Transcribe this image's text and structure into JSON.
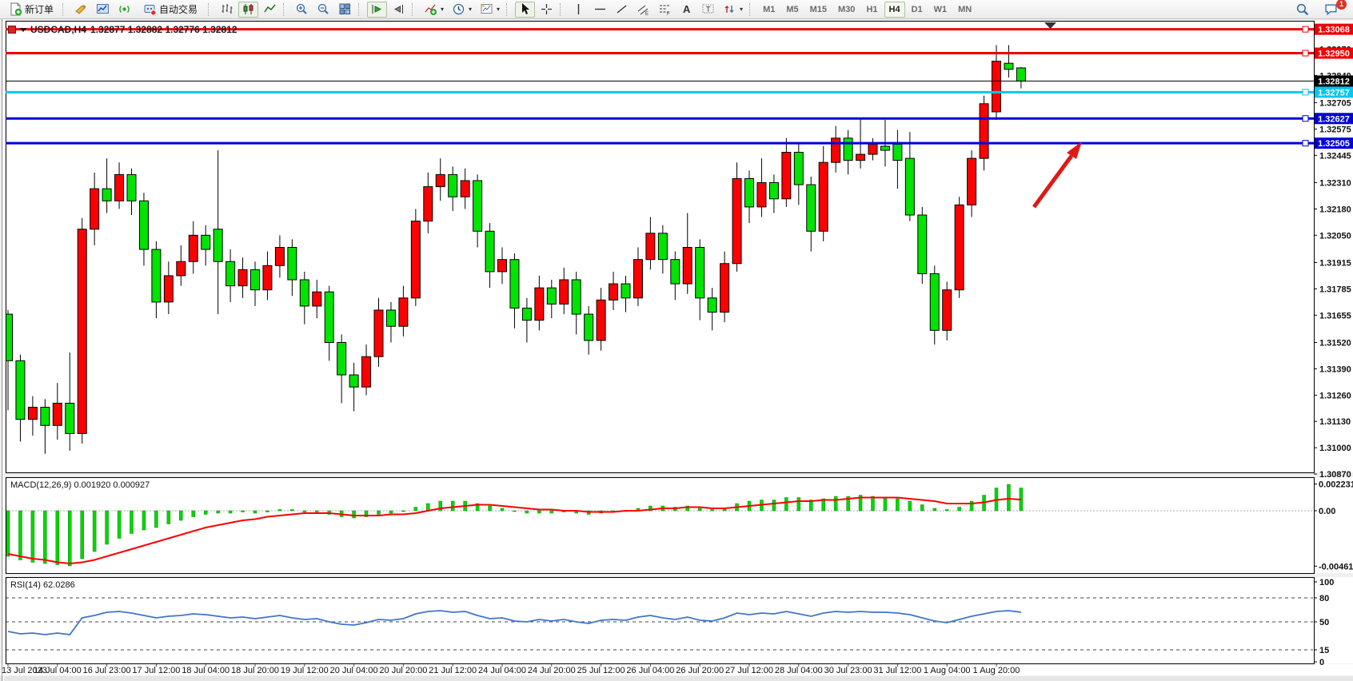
{
  "toolbar": {
    "new_order_label": "新订单",
    "autotrade_label": "自动交易",
    "timeframes": [
      "M1",
      "M5",
      "M15",
      "M30",
      "H1",
      "H4",
      "D1",
      "W1",
      "MN"
    ],
    "active_timeframe": "H4",
    "chat_badge": "1",
    "icons": [
      "new-order",
      "news-horn",
      "terminal",
      "signals",
      "autotrading",
      "bar-chart",
      "candlestick-chart",
      "line-chart",
      "zoom-in",
      "zoom-out",
      "tile-windows",
      "auto-scroll",
      "chart-shift",
      "indicators",
      "periods",
      "templates",
      "cursor",
      "crosshair",
      "vertical-line",
      "horizontal-line",
      "trendline",
      "equidistant-channel",
      "fibonacci",
      "text",
      "text-label",
      "arrows",
      "search",
      "chat"
    ]
  },
  "chart": {
    "title_symbol": "USDCAD,H4",
    "title_ohlc": "1.32877 1.32882 1.32776 1.32812",
    "colors": {
      "up": "#ff0000",
      "down": "#00e400",
      "up_meaning": "bullish (red, CN convention)",
      "down_meaning": "bearish (green, CN convention)",
      "level_red": "#ee0000",
      "level_cyan": "#00c8f0",
      "level_blue": "#0000d8",
      "price_line": "#000000",
      "macd_hist": "#00d800",
      "macd_signal": "#ff0000",
      "rsi_line": "#3f76c8",
      "arrow": "#e01818"
    }
  },
  "macd_panel": {
    "label": "MACD(12,26,9) 0.001920 0.000927"
  },
  "rsi_panel": {
    "label": "RSI(14) 62.0286"
  },
  "chart_data": {
    "type": "candlestick+indicators",
    "symbol": "USDCAD",
    "timeframe": "H4",
    "current_bar": {
      "open": 1.32877,
      "high": 1.32882,
      "low": 1.32776,
      "close": 1.32812
    },
    "current_price": 1.32812,
    "price_axis": {
      "top": 1.3311,
      "bottom": 1.30878,
      "ticks": [
        1.3297,
        1.3284,
        1.32705,
        1.32575,
        1.32445,
        1.3231,
        1.3218,
        1.3205,
        1.31915,
        1.31785,
        1.31655,
        1.3152,
        1.3139,
        1.3126,
        1.3113,
        1.31,
        1.3087
      ]
    },
    "levels": [
      {
        "price": 1.33068,
        "label": "1.33068",
        "color": "#ee0000",
        "w": 3,
        "text": "#ffffff"
      },
      {
        "price": 1.3295,
        "label": "1.32950",
        "color": "#ee0000",
        "w": 3,
        "text": "#ffffff"
      },
      {
        "price": 1.32757,
        "label": "1.32757",
        "color": "#00c8f0",
        "w": 3,
        "text": "#ffffff"
      },
      {
        "price": 1.32627,
        "label": "1.32627",
        "color": "#0000d8",
        "w": 3,
        "text": "#ffffff"
      },
      {
        "price": 1.32505,
        "label": "1.32505",
        "color": "#0000d8",
        "w": 3,
        "text": "#ffffff"
      }
    ],
    "current_price_label": "1.32812",
    "date_labels": [
      "13 Jul 2023",
      "14 Jul 04:00",
      "16 Jul 23:00",
      "17 Jul 12:00",
      "18 Jul 04:00",
      "18 Jul 20:00",
      "19 Jul 12:00",
      "20 Jul 04:00",
      "20 Jul 20:00",
      "21 Jul 12:00",
      "24 Jul 04:00",
      "24 Jul 20:00",
      "25 Jul 12:00",
      "26 Jul 04:00",
      "26 Jul 20:00",
      "27 Jul 12:00",
      "28 Jul 04:00",
      "30 Jul 23:00",
      "31 Jul 12:00",
      "1 Aug 04:00",
      "1 Aug 20:00"
    ],
    "candles": [
      [
        1.3166,
        1.3168,
        1.31185,
        1.3143
      ],
      [
        1.3143,
        1.3146,
        1.3103,
        1.3114
      ],
      [
        1.3114,
        1.31255,
        1.3106,
        1.312
      ],
      [
        1.312,
        1.3124,
        1.3097,
        1.3111
      ],
      [
        1.3111,
        1.3132,
        1.3104,
        1.3122
      ],
      [
        1.3122,
        1.3147,
        1.30985,
        1.3107
      ],
      [
        1.3107,
        1.32135,
        1.3102,
        1.3208
      ],
      [
        1.3208,
        1.3236,
        1.32,
        1.3228
      ],
      [
        1.3228,
        1.3243,
        1.3216,
        1.3222
      ],
      [
        1.3222,
        1.3241,
        1.3218,
        1.3235
      ],
      [
        1.3235,
        1.3238,
        1.3215,
        1.3222
      ],
      [
        1.3222,
        1.3226,
        1.319,
        1.3198
      ],
      [
        1.3198,
        1.3202,
        1.3164,
        1.3172
      ],
      [
        1.3172,
        1.3192,
        1.3166,
        1.3185
      ],
      [
        1.3185,
        1.32,
        1.318,
        1.3192
      ],
      [
        1.3192,
        1.3212,
        1.3186,
        1.3205
      ],
      [
        1.3205,
        1.321,
        1.319,
        1.3198
      ],
      [
        1.3208,
        1.3247,
        1.3166,
        1.3192
      ],
      [
        1.3192,
        1.3198,
        1.3172,
        1.318
      ],
      [
        1.318,
        1.3194,
        1.3174,
        1.3188
      ],
      [
        1.3188,
        1.3192,
        1.317,
        1.3178
      ],
      [
        1.3178,
        1.3197,
        1.3173,
        1.319
      ],
      [
        1.319,
        1.3205,
        1.3184,
        1.3199
      ],
      [
        1.3199,
        1.3203,
        1.3175,
        1.3183
      ],
      [
        1.3183,
        1.3187,
        1.3161,
        1.317
      ],
      [
        1.317,
        1.3183,
        1.3164,
        1.3177
      ],
      [
        1.3177,
        1.318,
        1.3143,
        1.3152
      ],
      [
        1.3152,
        1.3156,
        1.3122,
        1.3136
      ],
      [
        1.3136,
        1.3142,
        1.3118,
        1.313
      ],
      [
        1.313,
        1.3151,
        1.3126,
        1.3145
      ],
      [
        1.3145,
        1.3174,
        1.314,
        1.3168
      ],
      [
        1.3168,
        1.3172,
        1.3152,
        1.316
      ],
      [
        1.316,
        1.318,
        1.3155,
        1.3174
      ],
      [
        1.3174,
        1.3218,
        1.317,
        1.3212
      ],
      [
        1.3212,
        1.3236,
        1.3206,
        1.3229
      ],
      [
        1.3229,
        1.3243,
        1.3222,
        1.3235
      ],
      [
        1.3235,
        1.3239,
        1.3217,
        1.3224
      ],
      [
        1.3224,
        1.3238,
        1.3218,
        1.3232
      ],
      [
        1.3232,
        1.3235,
        1.3199,
        1.3207
      ],
      [
        1.3207,
        1.3211,
        1.3179,
        1.3187
      ],
      [
        1.3187,
        1.3199,
        1.3181,
        1.3193
      ],
      [
        1.3193,
        1.3196,
        1.3159,
        1.3169
      ],
      [
        1.3169,
        1.3174,
        1.3152,
        1.3163
      ],
      [
        1.3163,
        1.3185,
        1.3158,
        1.3179
      ],
      [
        1.3179,
        1.3183,
        1.3164,
        1.3171
      ],
      [
        1.3171,
        1.3189,
        1.3166,
        1.3183
      ],
      [
        1.3183,
        1.3187,
        1.3156,
        1.3166
      ],
      [
        1.3166,
        1.317,
        1.3146,
        1.3153
      ],
      [
        1.3153,
        1.3179,
        1.3148,
        1.3173
      ],
      [
        1.3173,
        1.3187,
        1.3168,
        1.3181
      ],
      [
        1.3181,
        1.3185,
        1.3167,
        1.3174
      ],
      [
        1.3174,
        1.3199,
        1.317,
        1.3193
      ],
      [
        1.3193,
        1.3214,
        1.3188,
        1.3206
      ],
      [
        1.3206,
        1.321,
        1.3186,
        1.3193
      ],
      [
        1.3193,
        1.3197,
        1.3173,
        1.3181
      ],
      [
        1.3181,
        1.3216,
        1.3176,
        1.3199
      ],
      [
        1.3199,
        1.3203,
        1.3163,
        1.3174
      ],
      [
        1.3174,
        1.3179,
        1.3158,
        1.3167
      ],
      [
        1.3167,
        1.3197,
        1.3162,
        1.3191
      ],
      [
        1.3191,
        1.3241,
        1.3187,
        1.3233
      ],
      [
        1.3233,
        1.3237,
        1.3211,
        1.3219
      ],
      [
        1.3219,
        1.3243,
        1.3214,
        1.3231
      ],
      [
        1.3231,
        1.3235,
        1.3216,
        1.3223
      ],
      [
        1.3223,
        1.3253,
        1.3219,
        1.3246
      ],
      [
        1.3246,
        1.325,
        1.322,
        1.323
      ],
      [
        1.323,
        1.3234,
        1.3197,
        1.3207
      ],
      [
        1.3207,
        1.3249,
        1.3202,
        1.3241
      ],
      [
        1.3241,
        1.3259,
        1.3236,
        1.3253
      ],
      [
        1.3253,
        1.3257,
        1.3235,
        1.3242
      ],
      [
        1.3242,
        1.3263,
        1.3238,
        1.3245
      ],
      [
        1.3245,
        1.3253,
        1.3242,
        1.325
      ],
      [
        1.3249,
        1.3262,
        1.3239,
        1.3247
      ],
      [
        1.325,
        1.3257,
        1.3228,
        1.3242
      ],
      [
        1.3243,
        1.3256,
        1.3212,
        1.3215
      ],
      [
        1.3215,
        1.3219,
        1.3181,
        1.3186
      ],
      [
        1.3186,
        1.319,
        1.3151,
        1.3158
      ],
      [
        1.3158,
        1.3182,
        1.3153,
        1.3178
      ],
      [
        1.3178,
        1.3224,
        1.3174,
        1.322
      ],
      [
        1.322,
        1.3247,
        1.3214,
        1.3243
      ],
      [
        1.3243,
        1.3274,
        1.3237,
        1.327
      ],
      [
        1.3266,
        1.3299,
        1.3262,
        1.3291
      ],
      [
        1.329,
        1.3299,
        1.3283,
        1.3287
      ],
      [
        1.32877,
        1.32882,
        1.32776,
        1.32812
      ]
    ],
    "macd": {
      "params": "12,26,9",
      "current_macd": 0.00192,
      "current_signal": 0.000927,
      "axis": [
        {
          "label": "0.002231",
          "v": 0.002231
        },
        {
          "label": "0.00",
          "v": 0
        },
        {
          "label": "-0.004619",
          "v": -0.004619
        }
      ],
      "histogram": [
        -0.0038,
        -0.0041,
        -0.0043,
        -0.0044,
        -0.0045,
        -0.0046,
        -0.004,
        -0.0034,
        -0.0028,
        -0.0023,
        -0.0019,
        -0.0016,
        -0.0014,
        -0.0011,
        -0.0008,
        -0.0005,
        -0.0003,
        -0.0002,
        -0.0002,
        -0.0001,
        -0.0002,
        -0.0001,
        0.0001,
        0.0001,
        -0.0001,
        -0.0001,
        -0.0003,
        -0.0005,
        -0.0006,
        -0.0005,
        -0.0003,
        -0.0002,
        0,
        0.0003,
        0.0006,
        0.0008,
        0.0008,
        0.0008,
        0.0006,
        0.0004,
        0.0002,
        0,
        -0.0002,
        -0.0002,
        -0.0002,
        -0.0001,
        -0.0002,
        -0.0003,
        -0.0002,
        0,
        0,
        0.0002,
        0.0004,
        0.0004,
        0.0003,
        0.0004,
        0.0002,
        0.0001,
        0.0002,
        0.0006,
        0.0008,
        0.0009,
        0.0009,
        0.0011,
        0.0011,
        0.0009,
        0.001,
        0.0012,
        0.0012,
        0.0013,
        0.0012,
        0.0011,
        0.001,
        0.0008,
        0.0005,
        0.0002,
        0.0001,
        0.0003,
        0.0008,
        0.0013,
        0.0019,
        0.0022,
        0.0019
      ],
      "signal": [
        -0.0036,
        -0.0038,
        -0.004,
        -0.0041,
        -0.0043,
        -0.0044,
        -0.0043,
        -0.0041,
        -0.0038,
        -0.0035,
        -0.0032,
        -0.0029,
        -0.0026,
        -0.0023,
        -0.002,
        -0.0017,
        -0.0014,
        -0.0012,
        -0.001,
        -0.0008,
        -0.0007,
        -0.0005,
        -0.0004,
        -0.0003,
        -0.0002,
        -0.0002,
        -0.0002,
        -0.0003,
        -0.0004,
        -0.0004,
        -0.0004,
        -0.0003,
        -0.0003,
        -0.0002,
        0,
        0.0002,
        0.0003,
        0.0004,
        0.0005,
        0.0005,
        0.0004,
        0.0003,
        0.0002,
        0.0001,
        0.0001,
        0,
        0,
        -0.0001,
        -0.0001,
        -0.0001,
        0,
        0,
        0.0001,
        0.0002,
        0.0002,
        0.0003,
        0.0003,
        0.0002,
        0.0002,
        0.0003,
        0.0004,
        0.0005,
        0.0006,
        0.0007,
        0.0008,
        0.0008,
        0.0009,
        0.0009,
        0.001,
        0.0011,
        0.0011,
        0.0011,
        0.0011,
        0.001,
        0.0009,
        0.0008,
        0.0006,
        0.0006,
        0.0006,
        0.0007,
        0.0009,
        0.001,
        0.00093
      ]
    },
    "rsi": {
      "period": 14,
      "current": 62.0286,
      "levels": [
        80,
        50,
        15
      ],
      "axis": [
        {
          "label": "100",
          "v": 100
        },
        {
          "label": "80",
          "v": 80
        },
        {
          "label": "50",
          "v": 50
        },
        {
          "label": "15",
          "v": 15
        },
        {
          "label": "0",
          "v": 0
        }
      ],
      "values": [
        38,
        35,
        36,
        34,
        36,
        34,
        55,
        58,
        62,
        63,
        61,
        58,
        55,
        57,
        58,
        60,
        59,
        57,
        55,
        56,
        54,
        56,
        58,
        55,
        53,
        54,
        50,
        47,
        46,
        49,
        53,
        52,
        54,
        60,
        63,
        64,
        62,
        63,
        58,
        54,
        55,
        51,
        50,
        53,
        51,
        53,
        50,
        48,
        52,
        53,
        52,
        56,
        58,
        55,
        53,
        56,
        52,
        51,
        55,
        61,
        59,
        61,
        60,
        63,
        60,
        57,
        61,
        63,
        62,
        63,
        62,
        62,
        61,
        59,
        55,
        51,
        49,
        53,
        57,
        60,
        63,
        64,
        62.03
      ]
    }
  }
}
